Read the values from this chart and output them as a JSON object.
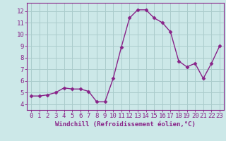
{
  "x": [
    0,
    1,
    2,
    3,
    4,
    5,
    6,
    7,
    8,
    9,
    10,
    11,
    12,
    13,
    14,
    15,
    16,
    17,
    18,
    19,
    20,
    21,
    22,
    23
  ],
  "y": [
    4.7,
    4.7,
    4.8,
    5.0,
    5.4,
    5.3,
    5.3,
    5.1,
    4.2,
    4.2,
    6.2,
    8.9,
    11.4,
    12.1,
    12.1,
    11.4,
    11.0,
    10.2,
    7.7,
    7.2,
    7.5,
    6.2,
    7.5,
    9.0
  ],
  "line_color": "#882288",
  "marker": "D",
  "marker_size": 2.5,
  "linewidth": 1.0,
  "xlabel": "Windchill (Refroidissement éolien,°C)",
  "xlabel_fontsize": 6.5,
  "ylim": [
    3.5,
    12.7
  ],
  "xlim": [
    -0.5,
    23.5
  ],
  "yticks": [
    4,
    5,
    6,
    7,
    8,
    9,
    10,
    11,
    12
  ],
  "xticks": [
    0,
    1,
    2,
    3,
    4,
    5,
    6,
    7,
    8,
    9,
    10,
    11,
    12,
    13,
    14,
    15,
    16,
    17,
    18,
    19,
    20,
    21,
    22,
    23
  ],
  "background_color": "#cce8e8",
  "grid_color": "#aacccc",
  "tick_fontsize": 6.5,
  "axes_color": "#882288",
  "spine_color": "#882288"
}
